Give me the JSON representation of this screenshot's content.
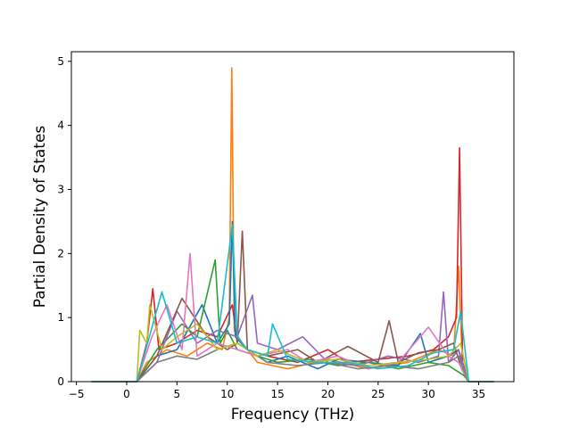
{
  "chart_data": {
    "type": "line",
    "title": "",
    "xlabel": "Frequency (THz)",
    "ylabel": "Partial Density of States",
    "xlim": [
      -5.5,
      38.5
    ],
    "ylim": [
      0,
      5.15
    ],
    "xticks": [
      -5,
      0,
      5,
      10,
      15,
      20,
      25,
      30,
      35
    ],
    "yticks": [
      0,
      1,
      2,
      3,
      4,
      5
    ],
    "grid": false,
    "legend": "none",
    "series_count_estimate": "many (~40+ overlapping atom projections)",
    "colors": [
      "#1f77b4",
      "#ff7f0e",
      "#2ca02c",
      "#d62728",
      "#9467bd",
      "#8c564b",
      "#e377c2",
      "#7f7f7f",
      "#bcbd22",
      "#17becf"
    ],
    "series": [
      {
        "color": "#ff7f0e",
        "x": [
          -3.5,
          1.0,
          2.0,
          4.0,
          6.0,
          8.0,
          9.5,
          10.2,
          10.45,
          10.7,
          11.5,
          13.0,
          16.0,
          20.0,
          24.0,
          28.0,
          31.0,
          32.5,
          33.0,
          33.4,
          34.0,
          36.5
        ],
        "y": [
          0,
          0,
          0.3,
          0.5,
          0.4,
          0.6,
          0.5,
          1.0,
          4.9,
          0.8,
          0.6,
          0.3,
          0.2,
          0.35,
          0.2,
          0.3,
          0.5,
          0.4,
          1.8,
          0.2,
          0,
          0
        ]
      },
      {
        "color": "#d62728",
        "x": [
          -3.5,
          1.0,
          2.0,
          2.6,
          3.2,
          5.0,
          7.0,
          9.0,
          10.5,
          11.0,
          12.0,
          14.0,
          17.0,
          20.0,
          22.0,
          25.0,
          28.0,
          30.5,
          32.0,
          32.8,
          33.1,
          33.4,
          34.0,
          36.5
        ],
        "y": [
          0,
          0,
          0.6,
          1.45,
          0.5,
          0.6,
          0.8,
          0.7,
          1.2,
          0.6,
          0.5,
          0.4,
          0.3,
          0.5,
          0.3,
          0.35,
          0.4,
          0.5,
          0.7,
          1.0,
          3.65,
          0.3,
          0,
          0
        ]
      },
      {
        "color": "#1f77b4",
        "x": [
          -3.5,
          1.0,
          3.0,
          5.0,
          7.5,
          9.0,
          10.2,
          10.5,
          10.8,
          12.0,
          14.0,
          16.0,
          19.0,
          21.0,
          24.0,
          27.0,
          29.2,
          30.0,
          32.0,
          33.0,
          33.6,
          34.0,
          36.5
        ],
        "y": [
          0,
          0,
          0.4,
          0.5,
          1.2,
          0.6,
          0.9,
          2.5,
          0.7,
          0.5,
          0.3,
          0.4,
          0.2,
          0.35,
          0.3,
          0.25,
          0.75,
          0.3,
          0.4,
          0.5,
          0.1,
          0,
          0
        ]
      },
      {
        "color": "#2ca02c",
        "x": [
          -3.5,
          1.0,
          3.0,
          5.5,
          7.0,
          8.8,
          9.3,
          10.0,
          11.0,
          13.0,
          15.0,
          18.0,
          21.0,
          24.0,
          27.0,
          30.0,
          32.0,
          33.5,
          34.0,
          36.5
        ],
        "y": [
          0,
          0,
          0.5,
          0.9,
          0.7,
          1.9,
          0.6,
          0.8,
          0.5,
          0.4,
          0.3,
          0.35,
          0.25,
          0.3,
          0.2,
          0.3,
          0.25,
          0.1,
          0,
          0
        ]
      },
      {
        "color": "#9467bd",
        "x": [
          -3.5,
          1.0,
          3.0,
          5.0,
          7.0,
          9.0,
          11.0,
          12.5,
          13.0,
          15.0,
          17.5,
          20.0,
          23.0,
          26.0,
          29.0,
          31.0,
          31.5,
          32.0,
          33.0,
          34.0,
          36.5
        ],
        "y": [
          0,
          0,
          0.3,
          1.1,
          0.6,
          0.8,
          0.7,
          1.35,
          0.6,
          0.5,
          0.7,
          0.3,
          0.25,
          0.4,
          0.3,
          0.4,
          1.4,
          0.3,
          0.5,
          0,
          0
        ]
      },
      {
        "color": "#8c564b",
        "x": [
          -3.5,
          1.0,
          3.0,
          5.5,
          8.0,
          10.0,
          11.0,
          11.5,
          12.0,
          14.0,
          17.0,
          19.0,
          22.0,
          25.0,
          26.1,
          27.0,
          29.0,
          31.0,
          32.5,
          33.3,
          34.0,
          36.5
        ],
        "y": [
          0,
          0,
          0.4,
          1.3,
          0.7,
          0.5,
          0.6,
          2.35,
          0.5,
          0.4,
          0.5,
          0.3,
          0.55,
          0.3,
          0.95,
          0.3,
          0.45,
          0.5,
          0.6,
          0.2,
          0,
          0
        ]
      },
      {
        "color": "#e377c2",
        "x": [
          -3.5,
          1.0,
          2.5,
          4.0,
          5.5,
          6.3,
          7.0,
          9.0,
          11.0,
          13.0,
          16.0,
          18.0,
          21.0,
          24.0,
          27.0,
          30.0,
          32.0,
          33.0,
          34.0,
          36.5
        ],
        "y": [
          0,
          0,
          0.7,
          1.2,
          0.5,
          2.0,
          0.4,
          0.6,
          0.5,
          0.4,
          0.5,
          0.3,
          0.4,
          0.2,
          0.3,
          0.85,
          0.4,
          0.3,
          0,
          0
        ]
      },
      {
        "color": "#7f7f7f",
        "x": [
          -3.5,
          1.0,
          3.0,
          5.0,
          7.0,
          9.0,
          11.0,
          14.0,
          17.0,
          20.0,
          23.0,
          26.0,
          29.0,
          32.0,
          33.0,
          34.0,
          36.5
        ],
        "y": [
          0,
          0,
          0.3,
          0.4,
          0.35,
          0.5,
          0.6,
          0.3,
          0.25,
          0.3,
          0.2,
          0.25,
          0.2,
          0.3,
          0.4,
          0,
          0
        ]
      },
      {
        "color": "#bcbd22",
        "x": [
          -3.5,
          1.0,
          1.3,
          2.0,
          2.3,
          3.5,
          5.0,
          7.0,
          9.0,
          11.0,
          13.0,
          15.0,
          18.0,
          21.0,
          24.0,
          27.0,
          30.0,
          32.0,
          33.2,
          34.0,
          36.5
        ],
        "y": [
          0,
          0,
          0.8,
          0.6,
          1.2,
          0.5,
          0.7,
          0.9,
          0.5,
          0.6,
          0.4,
          0.5,
          0.3,
          0.35,
          0.25,
          0.3,
          0.35,
          0.4,
          0.6,
          0,
          0
        ]
      },
      {
        "color": "#17becf",
        "x": [
          -3.5,
          1.0,
          3.5,
          5.0,
          7.0,
          9.0,
          10.5,
          11.0,
          12.0,
          14.0,
          14.5,
          16.0,
          19.0,
          22.0,
          25.0,
          28.0,
          30.5,
          32.5,
          33.2,
          34.0,
          36.5
        ],
        "y": [
          0,
          0,
          1.4,
          0.6,
          0.7,
          0.6,
          2.45,
          0.7,
          0.5,
          0.4,
          0.9,
          0.35,
          0.3,
          0.3,
          0.2,
          0.25,
          0.45,
          0.5,
          1.1,
          0,
          0
        ]
      }
    ]
  }
}
